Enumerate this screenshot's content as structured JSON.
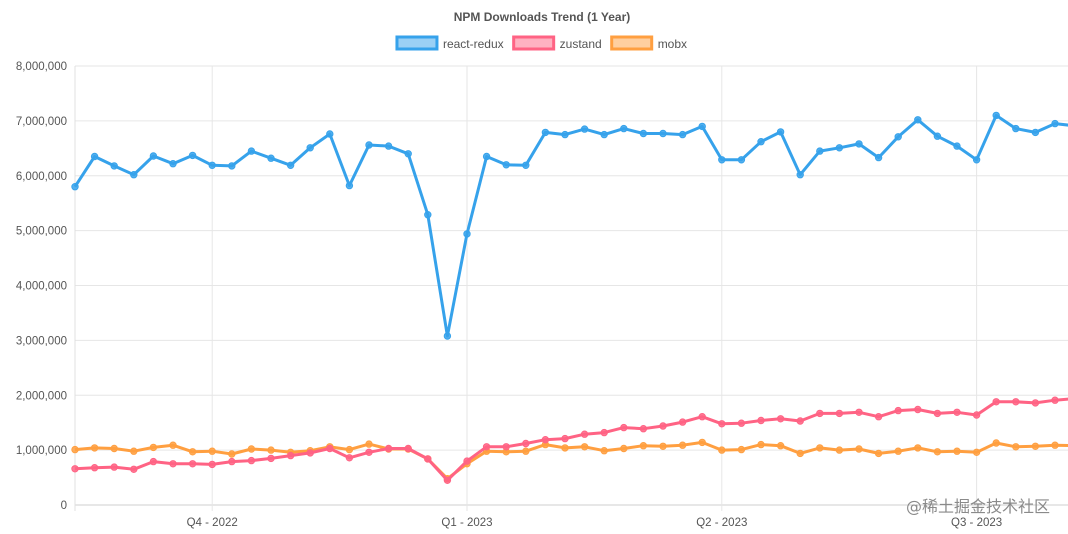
{
  "chart_data": {
    "type": "line",
    "title": "NPM Downloads Trend (1 Year)",
    "xlabel": "",
    "ylabel": "",
    "ylim": [
      0,
      8000000
    ],
    "y_ticks": [
      "0",
      "1,000,000",
      "2,000,000",
      "3,000,000",
      "4,000,000",
      "5,000,000",
      "6,000,000",
      "7,000,000",
      "8,000,000"
    ],
    "x_tick_labels": [
      {
        "label": "Q4 - 2022",
        "at_point": 7
      },
      {
        "label": "Q1 - 2023",
        "at_point": 20
      },
      {
        "label": "Q2 - 2023",
        "at_point": 33
      },
      {
        "label": "Q3 - 2023",
        "at_point": 46
      }
    ],
    "grid": true,
    "legend_position": "top-center",
    "series": [
      {
        "name": "react-redux",
        "color": "#36a2eb",
        "fill": "#9ad0f5",
        "values": [
          5800000,
          6350000,
          6180000,
          6020000,
          6360000,
          6220000,
          6370000,
          6190000,
          6180000,
          6450000,
          6320000,
          6190000,
          6510000,
          6760000,
          5820000,
          6560000,
          6540000,
          6400000,
          5290000,
          3080000,
          4940000,
          6350000,
          6200000,
          6190000,
          6790000,
          6750000,
          6850000,
          6750000,
          6860000,
          6770000,
          6770000,
          6750000,
          6900000,
          6290000,
          6290000,
          6620000,
          6800000,
          6020000,
          6450000,
          6510000,
          6580000,
          6330000,
          6710000,
          7020000,
          6720000,
          6540000,
          6290000,
          7100000,
          6860000,
          6790000,
          6950000,
          6910000
        ]
      },
      {
        "name": "zustand",
        "color": "#ff6384",
        "fill": "#ffb1c1",
        "values": [
          660000,
          680000,
          690000,
          650000,
          790000,
          750000,
          750000,
          740000,
          790000,
          810000,
          850000,
          900000,
          950000,
          1030000,
          860000,
          960000,
          1030000,
          1030000,
          840000,
          450000,
          800000,
          1060000,
          1060000,
          1120000,
          1190000,
          1210000,
          1290000,
          1320000,
          1410000,
          1390000,
          1440000,
          1510000,
          1610000,
          1480000,
          1490000,
          1540000,
          1570000,
          1530000,
          1670000,
          1670000,
          1690000,
          1610000,
          1720000,
          1740000,
          1670000,
          1690000,
          1640000,
          1880000,
          1880000,
          1860000,
          1910000,
          1940000
        ]
      },
      {
        "name": "mobx",
        "color": "#ff9f40",
        "fill": "#ffcf9f",
        "values": [
          1010000,
          1040000,
          1030000,
          980000,
          1050000,
          1090000,
          970000,
          980000,
          930000,
          1020000,
          1000000,
          960000,
          990000,
          1060000,
          1010000,
          1110000,
          1020000,
          1020000,
          840000,
          480000,
          750000,
          980000,
          970000,
          980000,
          1100000,
          1040000,
          1060000,
          990000,
          1030000,
          1080000,
          1070000,
          1090000,
          1140000,
          1000000,
          1010000,
          1100000,
          1080000,
          940000,
          1040000,
          1000000,
          1020000,
          940000,
          980000,
          1040000,
          970000,
          980000,
          960000,
          1130000,
          1060000,
          1070000,
          1090000,
          1080000
        ]
      }
    ]
  },
  "watermark": "@稀土掘金技术社区"
}
